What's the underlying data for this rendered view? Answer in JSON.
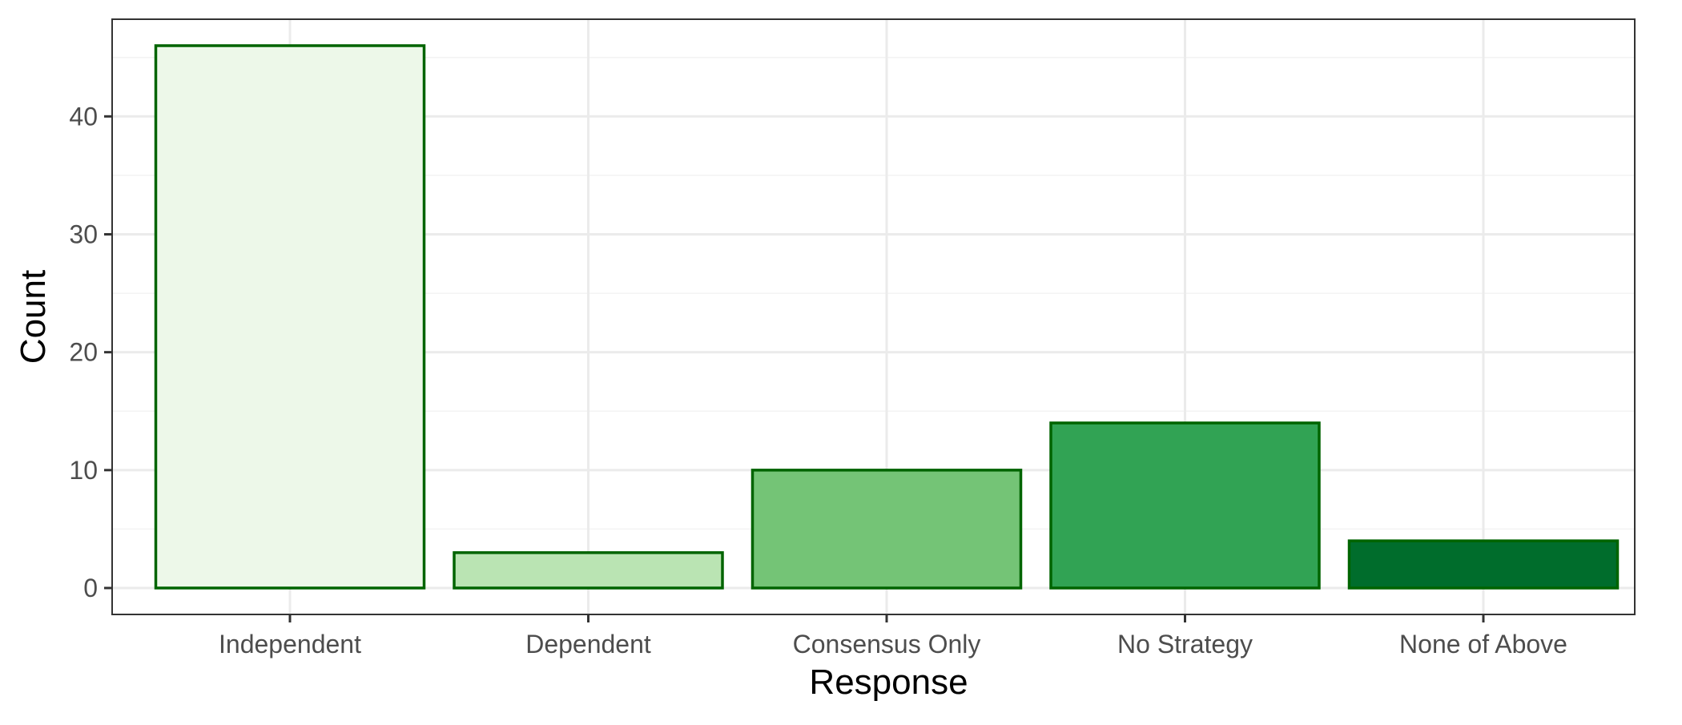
{
  "chart_data": {
    "type": "bar",
    "title": "",
    "xlabel": "Response",
    "ylabel": "Count",
    "categories": [
      "Independent",
      "Dependent",
      "Consensus Only",
      "No Strategy",
      "None of Above"
    ],
    "values": [
      46,
      3,
      10,
      14,
      4
    ],
    "ylim": [
      0,
      48.3
    ],
    "yticks": [
      0,
      10,
      20,
      30,
      40
    ],
    "ytick_labels": [
      "0",
      "10",
      "20",
      "30",
      "40"
    ],
    "grid": true,
    "legend": "none",
    "colors": {
      "bar_fills": [
        "#edf8e9",
        "#bae4b3",
        "#74c476",
        "#31a354",
        "#006d2c"
      ],
      "bar_outline": "#006400",
      "panel_border": "#333333",
      "grid_major": "#ebebeb",
      "grid_minor": "#f3f3f3",
      "tick_label": "#4d4d4d",
      "axis_title": "#000000"
    }
  }
}
